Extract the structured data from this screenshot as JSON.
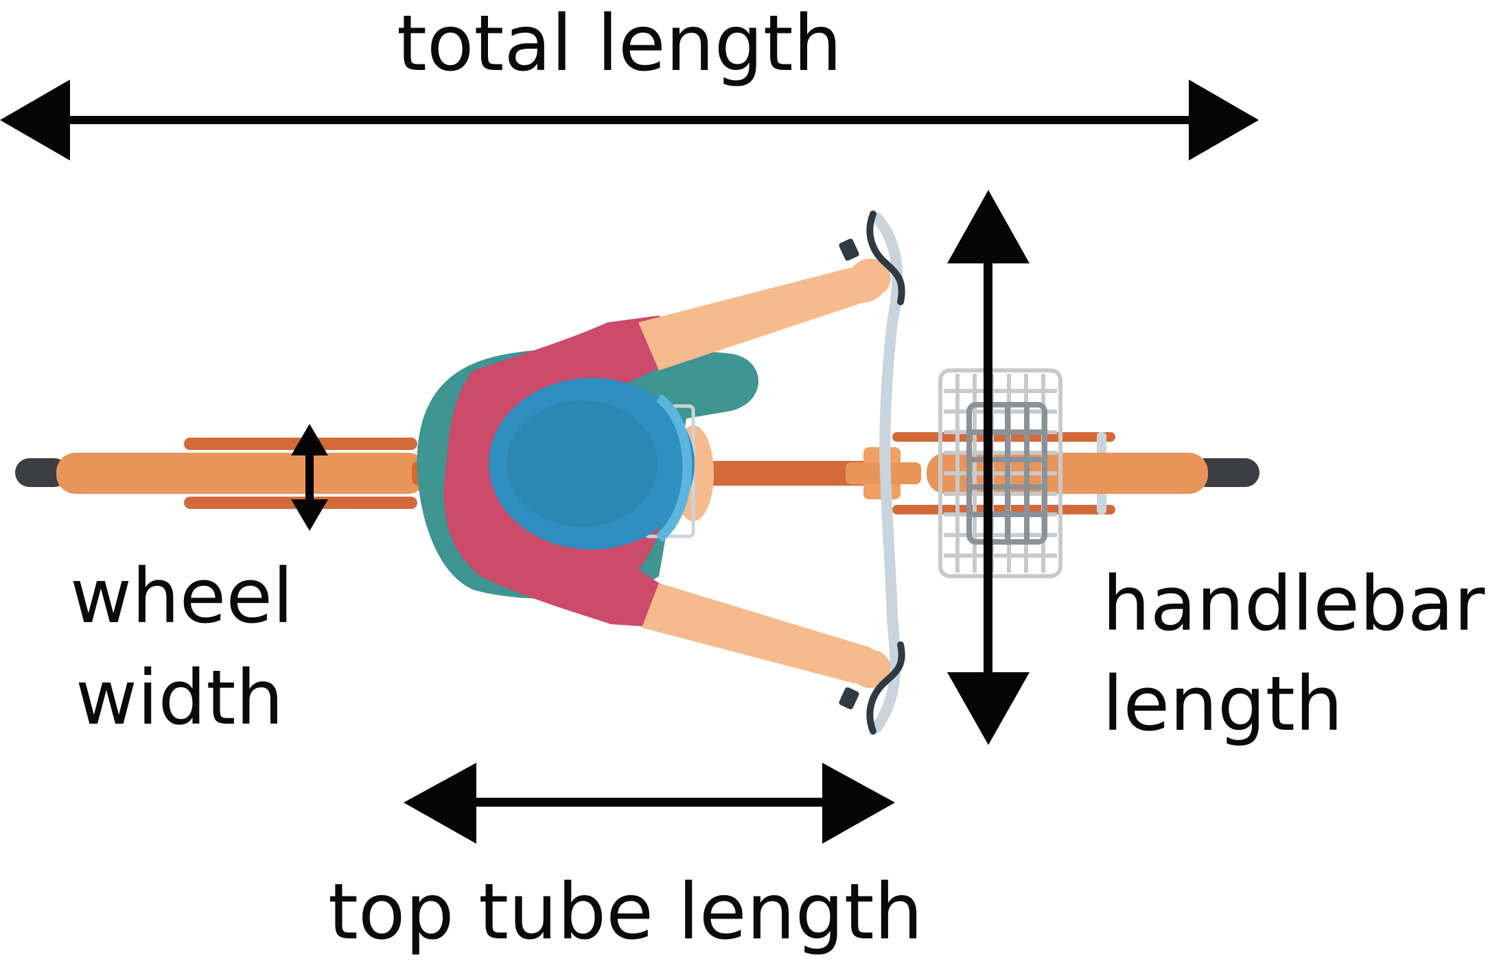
{
  "diagram": {
    "labels": {
      "total_length": "total length",
      "wheel_width_line1": "wheel",
      "wheel_width_line2": "width",
      "handlebar_length_line1": "handlebar",
      "handlebar_length_line2": "length",
      "top_tube_length": "top tube length"
    },
    "colors": {
      "arrow": "#050505",
      "frame": "#e9955a",
      "frame_dark": "#d46a3a",
      "tire": "#3d3d44",
      "shirt_back": "#3e9591",
      "shirt": "#cc4a6a",
      "skin": "#f5bb8c",
      "helmet": "#2e8fc0",
      "helmet_light": "#5cb5dc",
      "handlebar": "#c9d4dc",
      "basket": "#c7cacc",
      "grip": "#2f3a45"
    },
    "icons": [
      "bicycle-top-view-illustration",
      "double-arrow-icon"
    ]
  }
}
